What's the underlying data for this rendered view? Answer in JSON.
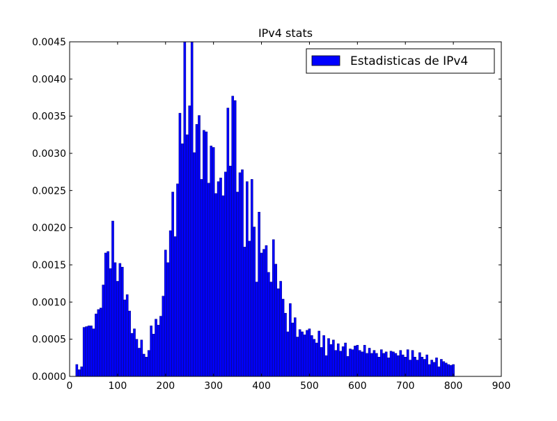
{
  "chart_data": {
    "type": "bar",
    "title": "IPv4 stats",
    "xlabel": "",
    "ylabel": "",
    "xlim": [
      0,
      900
    ],
    "ylim": [
      0,
      0.0045
    ],
    "bin_width": 4.5,
    "x_ticks": [
      0,
      100,
      200,
      300,
      400,
      500,
      600,
      700,
      800,
      900
    ],
    "x_tick_labels": [
      "0",
      "100",
      "200",
      "300",
      "400",
      "500",
      "600",
      "700",
      "800",
      "900"
    ],
    "y_ticks": [
      0,
      0.0005,
      0.001,
      0.0015,
      0.002,
      0.0025,
      0.003,
      0.0035,
      0.004,
      0.0045
    ],
    "y_tick_labels": [
      "0.0000",
      "0.0005",
      "0.0010",
      "0.0015",
      "0.0020",
      "0.0025",
      "0.0030",
      "0.0035",
      "0.0040",
      "0.0045"
    ],
    "legend": {
      "position": "top-right",
      "entries": [
        "Estadisticas de IPv4"
      ]
    },
    "grid": false,
    "colors": {
      "bar_fill": "#0000ff",
      "bar_edge": "#000080",
      "axes": "#000000"
    },
    "series": [
      {
        "name": "Estadisticas de IPv4",
        "x": [
          15,
          20,
          25,
          30,
          35,
          40,
          45,
          50,
          55,
          60,
          65,
          70,
          75,
          80,
          85,
          90,
          95,
          100,
          105,
          110,
          115,
          120,
          125,
          130,
          135,
          140,
          145,
          150,
          155,
          160,
          165,
          170,
          175,
          180,
          185,
          190,
          195,
          200,
          205,
          210,
          215,
          220,
          225,
          230,
          235,
          240,
          245,
          250,
          255,
          260,
          265,
          270,
          275,
          280,
          285,
          290,
          295,
          300,
          305,
          310,
          315,
          320,
          325,
          330,
          335,
          340,
          345,
          350,
          355,
          360,
          365,
          370,
          375,
          380,
          385,
          390,
          395,
          400,
          405,
          410,
          415,
          420,
          425,
          430,
          435,
          440,
          445,
          450,
          455,
          460,
          465,
          470,
          475,
          480,
          485,
          490,
          495,
          500,
          505,
          510,
          515,
          520,
          525,
          530,
          535,
          540,
          545,
          550,
          555,
          560,
          565,
          570,
          575,
          580,
          585,
          590,
          595,
          600,
          605,
          610,
          615,
          620,
          625,
          630,
          635,
          640,
          645,
          650,
          655,
          660,
          665,
          670,
          675,
          680,
          685,
          690,
          695,
          700,
          705,
          710,
          715,
          720,
          725,
          730,
          735,
          740,
          745,
          750,
          755,
          760,
          765,
          770,
          775,
          780,
          785,
          790,
          795,
          800
        ],
        "values": [
          0.00016,
          9e-05,
          0.00013,
          0.00066,
          0.00067,
          0.00068,
          0.00068,
          0.00064,
          0.00084,
          0.0009,
          0.00092,
          0.00123,
          0.00166,
          0.00168,
          0.00145,
          0.00209,
          0.00153,
          0.00128,
          0.00152,
          0.00147,
          0.00103,
          0.0011,
          0.00088,
          0.00058,
          0.00064,
          0.0005,
          0.00038,
          0.00049,
          0.0003,
          0.00026,
          0.00035,
          0.00068,
          0.00057,
          0.00077,
          0.00069,
          0.00081,
          0.00108,
          0.0017,
          0.00153,
          0.00196,
          0.00248,
          0.00188,
          0.00259,
          0.00354,
          0.00313,
          0.0045,
          0.00325,
          0.00364,
          0.0045,
          0.00301,
          0.00339,
          0.00351,
          0.00265,
          0.00331,
          0.00329,
          0.0026,
          0.0031,
          0.00308,
          0.00246,
          0.00262,
          0.00267,
          0.00243,
          0.00275,
          0.00361,
          0.00283,
          0.00377,
          0.00371,
          0.00248,
          0.00274,
          0.00278,
          0.00174,
          0.00262,
          0.00182,
          0.00265,
          0.00201,
          0.00127,
          0.00221,
          0.00166,
          0.00171,
          0.00176,
          0.0014,
          0.00127,
          0.00184,
          0.00151,
          0.00118,
          0.00128,
          0.00104,
          0.00085,
          0.0006,
          0.00098,
          0.00072,
          0.00079,
          0.00053,
          0.00063,
          0.0006,
          0.00056,
          0.00062,
          0.00064,
          0.00055,
          0.0005,
          0.00045,
          0.00061,
          0.00039,
          0.00055,
          0.00028,
          0.00051,
          0.00043,
          0.00049,
          0.00035,
          0.00044,
          0.00034,
          0.0004,
          0.00045,
          0.00027,
          0.00037,
          0.00036,
          0.00041,
          0.00042,
          0.00035,
          0.00033,
          0.00042,
          0.00031,
          0.00038,
          0.00031,
          0.00035,
          0.00031,
          0.00026,
          0.00036,
          0.00031,
          0.00033,
          0.00025,
          0.00034,
          0.00033,
          0.00031,
          0.00028,
          0.00035,
          0.00029,
          0.00026,
          0.00036,
          0.00022,
          0.00035,
          0.00026,
          0.00022,
          0.00032,
          0.00026,
          0.00023,
          0.00029,
          0.00016,
          0.00022,
          0.00019,
          0.00025,
          0.00013,
          0.00023,
          0.0002,
          0.00018,
          0.00016,
          0.00015,
          0.00016
        ]
      }
    ]
  }
}
